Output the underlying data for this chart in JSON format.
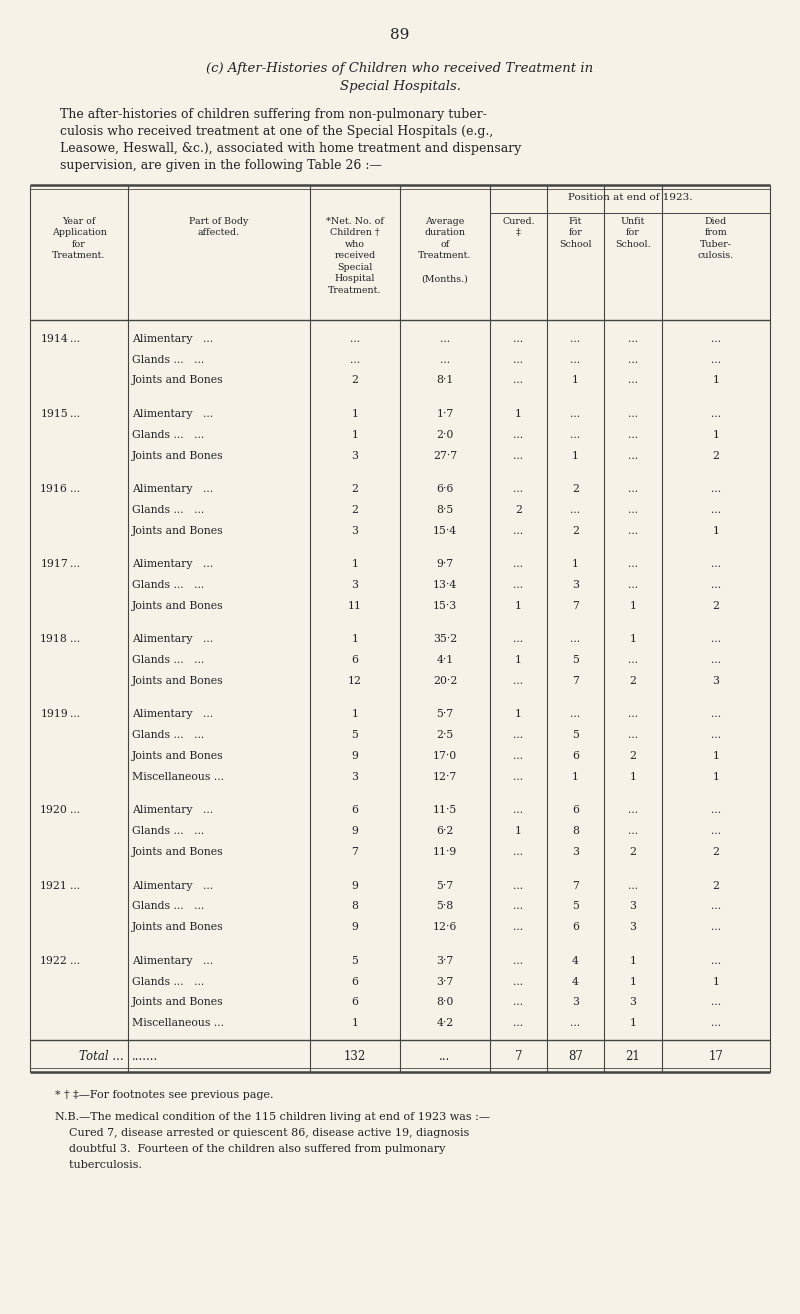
{
  "page_number": "89",
  "title_line1": "(c) After-Histories of Children who received Treatment in",
  "title_line2": "Special Hospitals.",
  "intro_text_lines": [
    "The after-histories of children suffering from non-pulmonary tuber-",
    "culosis who received treatment at one of the Special Hospitals (e.g.,",
    "Leasowe, Heswall, &c.), associated with home treatment and dispensary",
    "supervision, are given in the following Table 26 :—"
  ],
  "position_header": "Position at end of 1923.",
  "col_headers": [
    "Year of\nApplication\nfor\nTreatment.",
    "Part of Body\naffected.",
    "*Net. No. of\nChildren †\nwho\nreceived\nSpecial\nHospital\nTreatment.",
    "Average\nduration\nof\nTreatment.\n\n(Months.)",
    "Cured.\n‡",
    "Fit\nfor\nSchool",
    "Unfit\nfor\nSchool.",
    "Died\nfrom\nTuber-\nculosis."
  ],
  "rows": [
    {
      "year": "1914",
      "part": "Alimentary   ...",
      "net": "...",
      "avg": "...",
      "cured": "...",
      "fit": "...",
      "unfit": "...",
      "died": "..."
    },
    {
      "year": "",
      "part": "Glands ...   ...",
      "net": "...",
      "avg": "...",
      "cured": "...",
      "fit": "...",
      "unfit": "...",
      "died": "..."
    },
    {
      "year": "",
      "part": "Joints and Bones",
      "net": "2",
      "avg": "8·1",
      "cured": "...",
      "fit": "1",
      "unfit": "...",
      "died": "1"
    },
    {
      "year": "1915",
      "part": "Alimentary   ...",
      "net": "1",
      "avg": "1·7",
      "cured": "1",
      "fit": "...",
      "unfit": "...",
      "died": "..."
    },
    {
      "year": "",
      "part": "Glands ...   ...",
      "net": "1",
      "avg": "2·0",
      "cured": "...",
      "fit": "...",
      "unfit": "...",
      "died": "1"
    },
    {
      "year": "",
      "part": "Joints and Bones",
      "net": "3",
      "avg": "27·7",
      "cured": "...",
      "fit": "1",
      "unfit": "...",
      "died": "2"
    },
    {
      "year": "1916",
      "part": "Alimentary   ...",
      "net": "2",
      "avg": "6·6",
      "cured": "...",
      "fit": "2",
      "unfit": "...",
      "died": "..."
    },
    {
      "year": "",
      "part": "Glands ...   ...",
      "net": "2",
      "avg": "8·5",
      "cured": "2",
      "fit": "...",
      "unfit": "...",
      "died": "..."
    },
    {
      "year": "",
      "part": "Joints and Bones",
      "net": "3",
      "avg": "15·4",
      "cured": "...",
      "fit": "2",
      "unfit": "...",
      "died": "1"
    },
    {
      "year": "1917",
      "part": "Alimentary   ...",
      "net": "1",
      "avg": "9·7",
      "cured": "...",
      "fit": "1",
      "unfit": "...",
      "died": "..."
    },
    {
      "year": "",
      "part": "Glands ...   ...",
      "net": "3",
      "avg": "13·4",
      "cured": "...",
      "fit": "3",
      "unfit": "...",
      "died": "..."
    },
    {
      "year": "",
      "part": "Joints and Bones",
      "net": "11",
      "avg": "15·3",
      "cured": "1",
      "fit": "7",
      "unfit": "1",
      "died": "2"
    },
    {
      "year": "1918",
      "part": "Alimentary   ...",
      "net": "1",
      "avg": "35·2",
      "cured": "...",
      "fit": "...",
      "unfit": "1",
      "died": "..."
    },
    {
      "year": "",
      "part": "Glands ...   ...",
      "net": "6",
      "avg": "4·1",
      "cured": "1",
      "fit": "5",
      "unfit": "...",
      "died": "..."
    },
    {
      "year": "",
      "part": "Joints and Bones",
      "net": "12",
      "avg": "20·2",
      "cured": "...",
      "fit": "7",
      "unfit": "2",
      "died": "3"
    },
    {
      "year": "1919",
      "part": "Alimentary   ...",
      "net": "1",
      "avg": "5·7",
      "cured": "1",
      "fit": "...",
      "unfit": "...",
      "died": "..."
    },
    {
      "year": "",
      "part": "Glands ...   ...",
      "net": "5",
      "avg": "2·5",
      "cured": "...",
      "fit": "5",
      "unfit": "...",
      "died": "..."
    },
    {
      "year": "",
      "part": "Joints and Bones",
      "net": "9",
      "avg": "17·0",
      "cured": "...",
      "fit": "6",
      "unfit": "2",
      "died": "1"
    },
    {
      "year": "",
      "part": "Miscellaneous ...",
      "net": "3",
      "avg": "12·7",
      "cured": "...",
      "fit": "1",
      "unfit": "1",
      "died": "1"
    },
    {
      "year": "1920",
      "part": "Alimentary   ...",
      "net": "6",
      "avg": "11·5",
      "cured": "...",
      "fit": "6",
      "unfit": "...",
      "died": "..."
    },
    {
      "year": "",
      "part": "Glands ...   ...",
      "net": "9",
      "avg": "6·2",
      "cured": "1",
      "fit": "8",
      "unfit": "...",
      "died": "..."
    },
    {
      "year": "",
      "part": "Joints and Bones",
      "net": "7",
      "avg": "11·9",
      "cured": "...",
      "fit": "3",
      "unfit": "2",
      "died": "2"
    },
    {
      "year": "1921",
      "part": "Alimentary   ...",
      "net": "9",
      "avg": "5·7",
      "cured": "...",
      "fit": "7",
      "unfit": "...",
      "died": "2"
    },
    {
      "year": "",
      "part": "Glands ...   ...",
      "net": "8",
      "avg": "5·8",
      "cured": "...",
      "fit": "5",
      "unfit": "3",
      "died": "..."
    },
    {
      "year": "",
      "part": "Joints and Bones",
      "net": "9",
      "avg": "12·6",
      "cured": "...",
      "fit": "6",
      "unfit": "3",
      "died": "..."
    },
    {
      "year": "1922",
      "part": "Alimentary   ...",
      "net": "5",
      "avg": "3·7",
      "cured": "...",
      "fit": "4",
      "unfit": "1",
      "died": "..."
    },
    {
      "year": "",
      "part": "Glands ...   ...",
      "net": "6",
      "avg": "3·7",
      "cured": "...",
      "fit": "4",
      "unfit": "1",
      "died": "1"
    },
    {
      "year": "",
      "part": "Joints and Bones",
      "net": "6",
      "avg": "8·0",
      "cured": "...",
      "fit": "3",
      "unfit": "3",
      "died": "..."
    },
    {
      "year": "",
      "part": "Miscellaneous ...",
      "net": "1",
      "avg": "4·2",
      "cured": "...",
      "fit": "...",
      "unfit": "1",
      "died": "..."
    }
  ],
  "total_row": {
    "net": "132",
    "avg": "...",
    "cured": "7",
    "fit": "87",
    "unfit": "21",
    "died": "17"
  },
  "footnote1": "* † ‡—For footnotes see previous page.",
  "footnote2_lines": [
    "N.B.—The medical condition of the 115 children living at end of 1923 was :—",
    "    Cured 7, disease arrested or quiescent 86, disease active 19, diagnosis",
    "    doubtful 3.  Fourteen of the children also suffered from pulmonary",
    "    tuberculosis."
  ],
  "bg_color": "#f7f2e8",
  "text_color": "#222222",
  "line_color": "#444444"
}
